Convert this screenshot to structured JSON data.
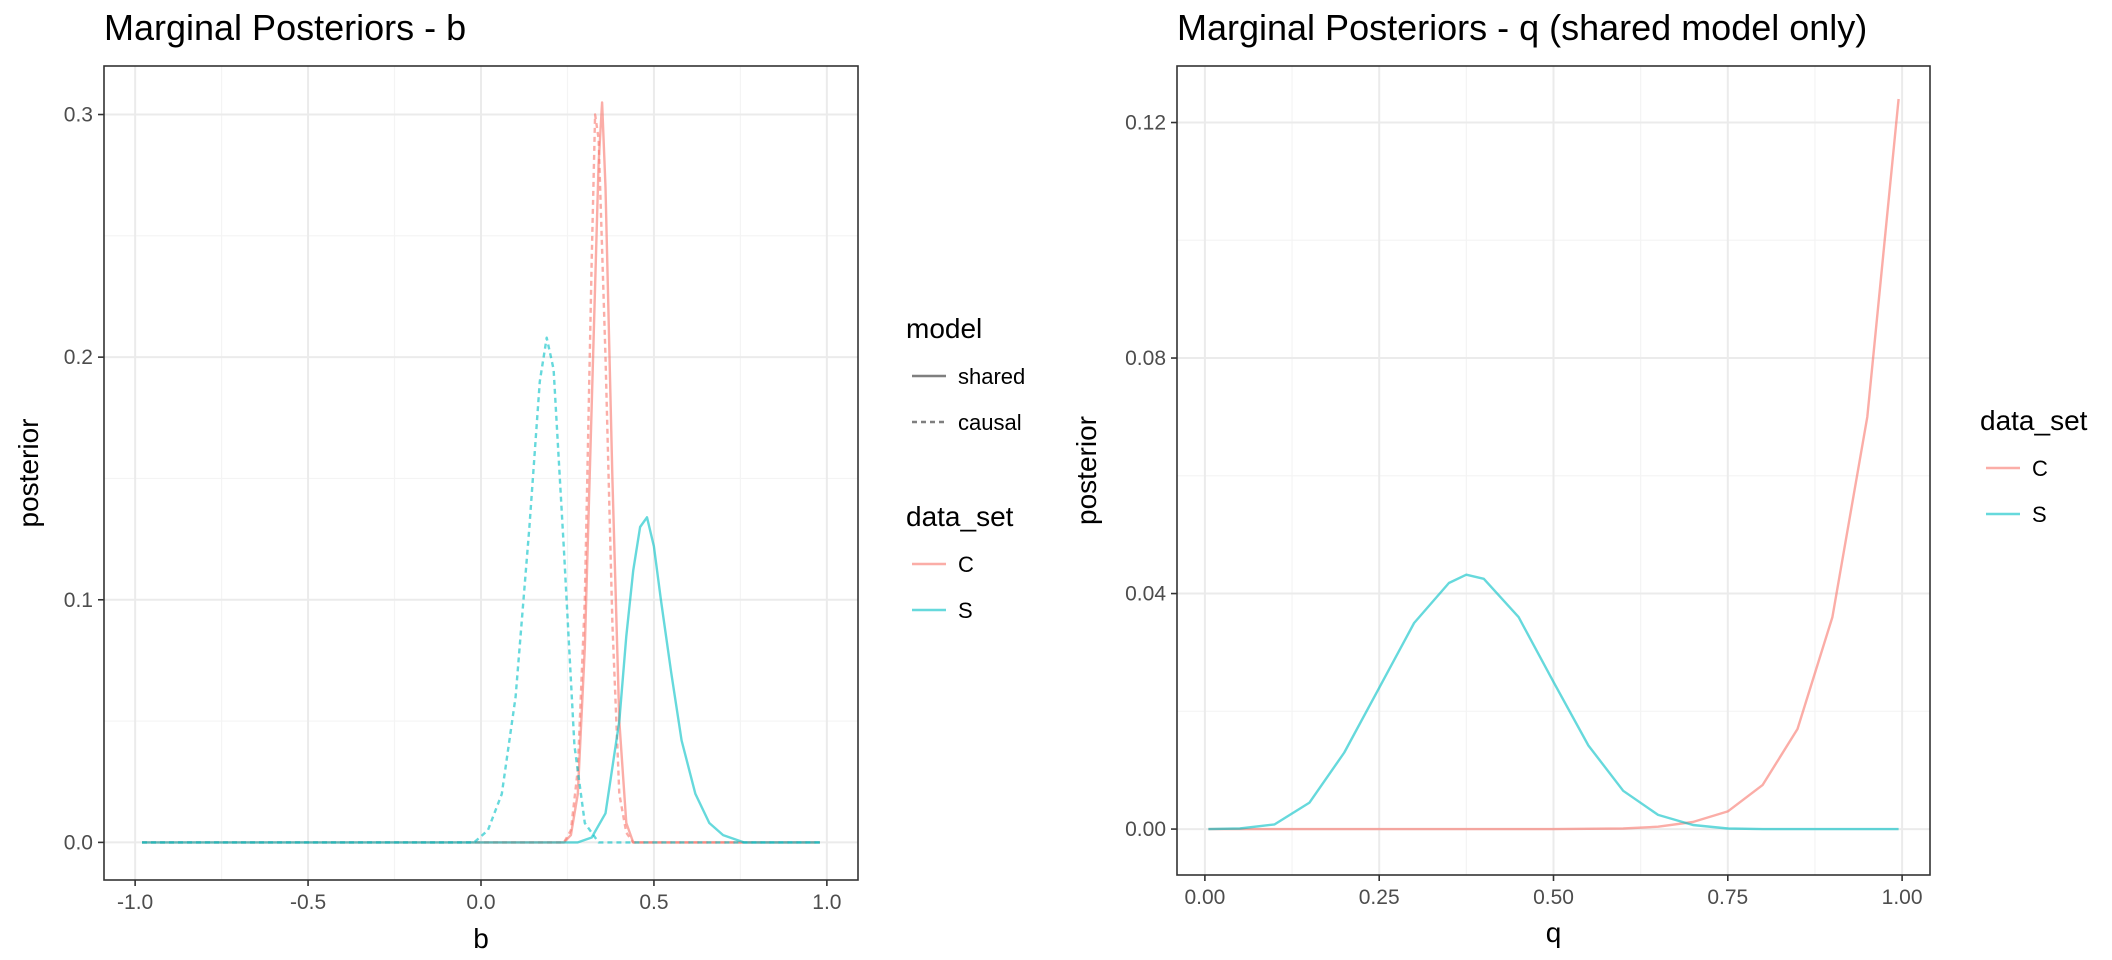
{
  "colors": {
    "C": "#F8766D",
    "S": "#00BFC4",
    "grey": "#7f7f7f"
  },
  "chart_data": [
    {
      "type": "line",
      "title": "Marginal Posteriors - b",
      "xlabel": "b",
      "ylabel": "posterior",
      "xlim": [
        -1.09,
        1.09
      ],
      "ylim": [
        -0.0155,
        0.32
      ],
      "xticks": [
        -1.0,
        -0.5,
        0.0,
        0.5,
        1.0
      ],
      "xtick_labels": [
        "-1.0",
        "-0.5",
        "0.0",
        "0.5",
        "1.0"
      ],
      "yticks": [
        0.0,
        0.1,
        0.2,
        0.3
      ],
      "ytick_labels": [
        "0.0",
        "0.1",
        "0.2",
        "0.3"
      ],
      "grid": true,
      "legends": [
        {
          "title": "model",
          "entries": [
            {
              "label": "shared",
              "linetype": "solid"
            },
            {
              "label": "causal",
              "linetype": "dashed"
            }
          ]
        },
        {
          "title": "data_set",
          "entries": [
            {
              "label": "C",
              "color": "C"
            },
            {
              "label": "S",
              "color": "S"
            }
          ]
        }
      ],
      "legend_position": "right",
      "series": [
        {
          "data_set": "C",
          "model": "shared",
          "x": [
            -0.98,
            0.24,
            0.26,
            0.28,
            0.3,
            0.32,
            0.34,
            0.35,
            0.36,
            0.38,
            0.4,
            0.42,
            0.44,
            0.98
          ],
          "y": [
            0,
            0,
            0.003,
            0.02,
            0.08,
            0.18,
            0.28,
            0.305,
            0.27,
            0.15,
            0.05,
            0.008,
            0,
            0
          ]
        },
        {
          "data_set": "C",
          "model": "causal",
          "x": [
            -0.98,
            0.24,
            0.26,
            0.28,
            0.3,
            0.32,
            0.33,
            0.34,
            0.36,
            0.38,
            0.4,
            0.42,
            0.44,
            0.98
          ],
          "y": [
            0,
            0,
            0.005,
            0.03,
            0.1,
            0.24,
            0.3,
            0.29,
            0.2,
            0.09,
            0.02,
            0.004,
            0,
            0
          ]
        },
        {
          "data_set": "S",
          "model": "shared",
          "x": [
            -0.98,
            0.28,
            0.32,
            0.36,
            0.4,
            0.42,
            0.44,
            0.46,
            0.48,
            0.5,
            0.52,
            0.55,
            0.58,
            0.62,
            0.66,
            0.7,
            0.76,
            0.98
          ],
          "y": [
            0,
            0,
            0.002,
            0.012,
            0.05,
            0.085,
            0.112,
            0.13,
            0.134,
            0.122,
            0.1,
            0.07,
            0.042,
            0.02,
            0.008,
            0.003,
            0,
            0
          ]
        },
        {
          "data_set": "S",
          "model": "causal",
          "x": [
            -0.98,
            -0.02,
            0.02,
            0.06,
            0.1,
            0.14,
            0.17,
            0.19,
            0.21,
            0.24,
            0.27,
            0.3,
            0.34,
            0.98
          ],
          "y": [
            0,
            0,
            0.005,
            0.02,
            0.06,
            0.13,
            0.19,
            0.208,
            0.195,
            0.12,
            0.04,
            0.008,
            0,
            0
          ]
        }
      ]
    },
    {
      "type": "line",
      "title": "Marginal Posteriors - q (shared model only)",
      "xlabel": "q",
      "ylabel": "posterior",
      "xlim": [
        -0.04,
        1.04
      ],
      "ylim": [
        -0.0078,
        0.1296
      ],
      "xticks": [
        0.0,
        0.25,
        0.5,
        0.75,
        1.0
      ],
      "xtick_labels": [
        "0.00",
        "0.25",
        "0.50",
        "0.75",
        "1.00"
      ],
      "yticks": [
        0.0,
        0.04,
        0.08,
        0.12
      ],
      "ytick_labels": [
        "0.00",
        "0.04",
        "0.08",
        "0.12"
      ],
      "grid": true,
      "legends": [
        {
          "title": "data_set",
          "entries": [
            {
              "label": "C",
              "color": "C"
            },
            {
              "label": "S",
              "color": "S"
            }
          ]
        }
      ],
      "legend_position": "right",
      "series": [
        {
          "data_set": "C",
          "model": "shared",
          "x": [
            0.005,
            0.5,
            0.6,
            0.65,
            0.7,
            0.75,
            0.8,
            0.85,
            0.9,
            0.95,
            0.995
          ],
          "y": [
            0,
            0,
            0.0001,
            0.0004,
            0.0012,
            0.003,
            0.0075,
            0.017,
            0.036,
            0.07,
            0.124
          ]
        },
        {
          "data_set": "S",
          "model": "shared",
          "x": [
            0.005,
            0.05,
            0.1,
            0.15,
            0.2,
            0.25,
            0.3,
            0.35,
            0.375,
            0.4,
            0.45,
            0.5,
            0.55,
            0.6,
            0.65,
            0.7,
            0.75,
            0.8,
            0.995
          ],
          "y": [
            0,
            0.0001,
            0.0008,
            0.0045,
            0.013,
            0.024,
            0.035,
            0.0418,
            0.0432,
            0.0425,
            0.036,
            0.025,
            0.0142,
            0.0065,
            0.0024,
            0.0007,
            0.0001,
            0,
            0
          ]
        }
      ]
    }
  ]
}
